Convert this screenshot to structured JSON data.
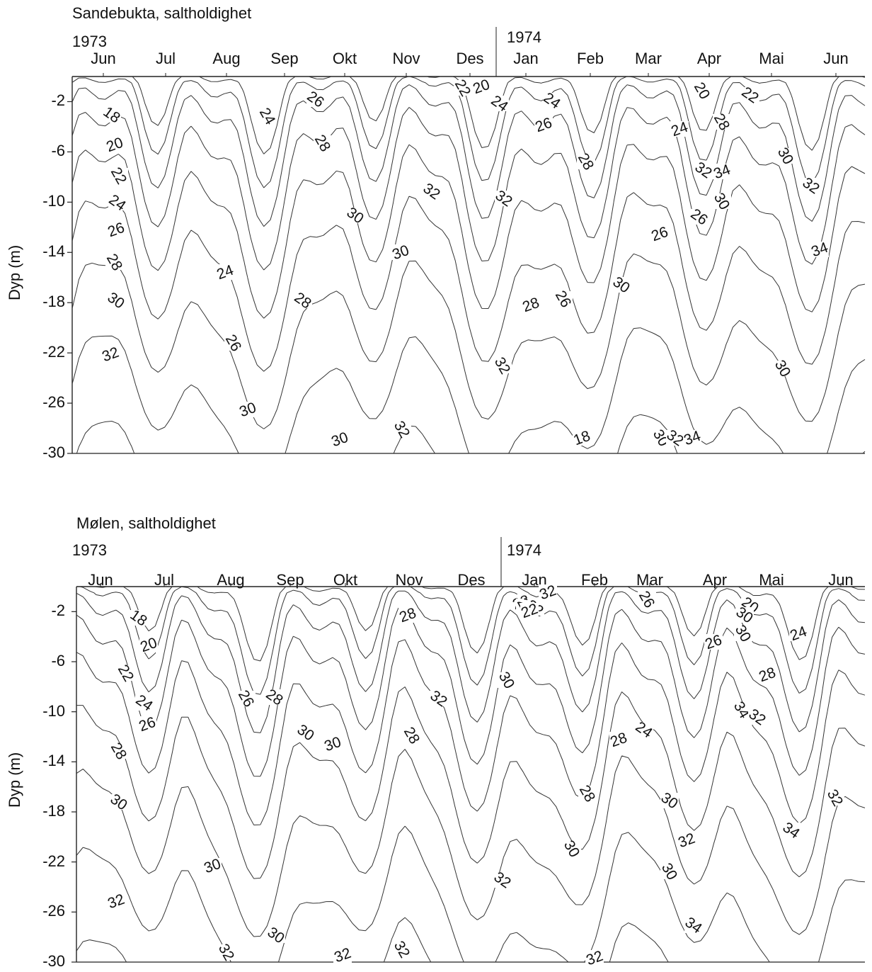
{
  "chart_data": [
    {
      "type": "contour",
      "title": "Sandebukta, saltholdighet",
      "ylabel": "Dyp (m)",
      "years": [
        "1973",
        "1974"
      ],
      "months": [
        "Jun",
        "Jul",
        "Aug",
        "Sep",
        "Okt",
        "Nov",
        "Des",
        "Jan",
        "Feb",
        "Mar",
        "Apr",
        "Mai",
        "Jun"
      ],
      "yticks": [
        -2,
        -6,
        -10,
        -14,
        -18,
        -22,
        -26,
        -30
      ],
      "ylim": [
        -30,
        0
      ],
      "contour_levels": [
        18,
        20,
        22,
        24,
        26,
        28,
        30,
        32,
        34
      ],
      "contour_labels": [
        "18",
        "20",
        "22",
        "24",
        "26",
        "28",
        "30",
        "32",
        "24",
        "26",
        "24",
        "26",
        "28",
        "30",
        "28",
        "30",
        "30",
        "32",
        "32",
        "30",
        "32",
        "32",
        "28",
        "26",
        "24",
        "20",
        "22",
        "24",
        "26",
        "28",
        "30",
        "18",
        "20",
        "22",
        "24",
        "28",
        "32",
        "34",
        "30",
        "26",
        "26",
        "30",
        "32",
        "34",
        "30",
        "32",
        "34",
        "30"
      ]
    },
    {
      "type": "contour",
      "title": "Mølen, saltholdighet",
      "ylabel": "Dyp (m)",
      "years": [
        "1973",
        "1974"
      ],
      "months": [
        "Jun",
        "Jul",
        "Aug",
        "Sep",
        "Okt",
        "Nov",
        "Des",
        "Jan",
        "Feb",
        "Mar",
        "Apr",
        "Mai",
        "Jun"
      ],
      "yticks": [
        -2,
        -6,
        -10,
        -14,
        -18,
        -22,
        -26,
        -30
      ],
      "ylim": [
        -30,
        0
      ],
      "contour_levels": [
        18,
        20,
        22,
        24,
        26,
        28,
        30,
        32,
        34
      ],
      "contour_labels": [
        "18",
        "20",
        "22",
        "24",
        "26",
        "28",
        "30",
        "32",
        "26",
        "28",
        "28",
        "30",
        "30",
        "30",
        "28",
        "32",
        "30",
        "32",
        "30",
        "32",
        "32",
        "32",
        "28",
        "26",
        "22",
        "22",
        "26",
        "24",
        "28",
        "28",
        "30",
        "32",
        "30",
        "34",
        "26",
        "30",
        "20",
        "28",
        "34",
        "32",
        "24",
        "32",
        "34",
        "32",
        "30",
        "30",
        "32"
      ]
    }
  ]
}
